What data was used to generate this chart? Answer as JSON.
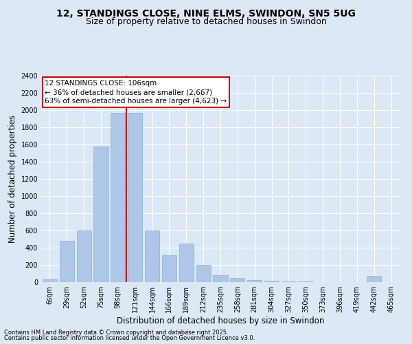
{
  "title": "12, STANDINGS CLOSE, NINE ELMS, SWINDON, SN5 5UG",
  "subtitle": "Size of property relative to detached houses in Swindon",
  "xlabel": "Distribution of detached houses by size in Swindon",
  "ylabel": "Number of detached properties",
  "footnote1": "Contains HM Land Registry data © Crown copyright and database right 2025.",
  "footnote2": "Contains public sector information licensed under the Open Government Licence v3.0.",
  "annotation_title": "12 STANDINGS CLOSE: 106sqm",
  "annotation_line1": "← 36% of detached houses are smaller (2,667)",
  "annotation_line2": "63% of semi-detached houses are larger (4,623) →",
  "bar_labels": [
    "6sqm",
    "29sqm",
    "52sqm",
    "75sqm",
    "98sqm",
    "121sqm",
    "144sqm",
    "166sqm",
    "189sqm",
    "212sqm",
    "235sqm",
    "258sqm",
    "281sqm",
    "304sqm",
    "327sqm",
    "350sqm",
    "373sqm",
    "396sqm",
    "419sqm",
    "442sqm",
    "465sqm"
  ],
  "bar_values": [
    30,
    480,
    600,
    1580,
    1970,
    1970,
    600,
    310,
    450,
    200,
    80,
    50,
    25,
    15,
    10,
    5,
    3,
    2,
    1,
    75,
    3
  ],
  "bar_color": "#aec6e8",
  "bar_edge_color": "#8ab0d4",
  "vline_x": 4.5,
  "vline_color": "#cc0000",
  "annotation_box_color": "#cc0000",
  "ylim": [
    0,
    2400
  ],
  "bg_color": "#dce8f5",
  "plot_bg_color": "#dce8f5",
  "title_fontsize": 10,
  "subtitle_fontsize": 9,
  "axis_label_fontsize": 8.5,
  "tick_fontsize": 7,
  "annotation_fontsize": 7.5,
  "yticks": [
    0,
    200,
    400,
    600,
    800,
    1000,
    1200,
    1400,
    1600,
    1800,
    2000,
    2200,
    2400
  ]
}
